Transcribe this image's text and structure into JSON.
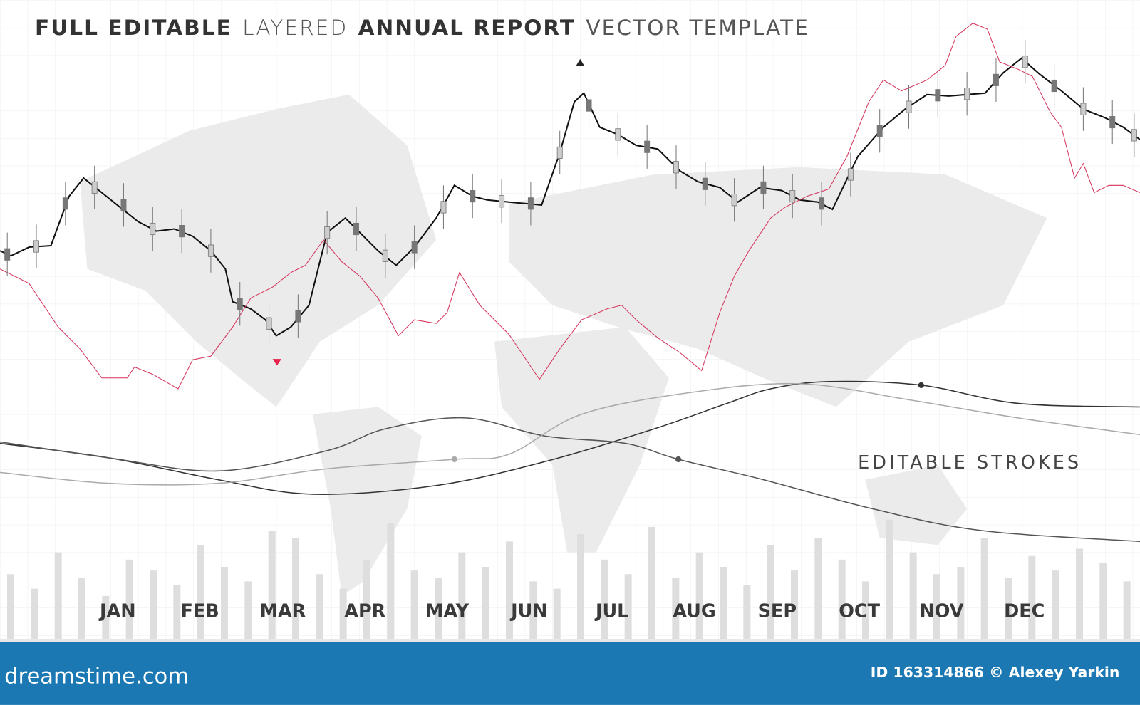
{
  "chart_data": [
    {
      "type": "candlestick",
      "title": [
        "FULL EDITABLE",
        "LAYERED",
        "ANNUAL REPORT",
        "VECTOR TEMPLATE"
      ],
      "annotations": [
        "EDITABLE STROKES"
      ],
      "xlim": [
        0,
        1568
      ],
      "ylim": [
        0,
        880
      ],
      "xticks": [
        {
          "value": 162,
          "label": "JAN"
        },
        {
          "value": 275,
          "label": "FEB"
        },
        {
          "value": 389,
          "label": "MAR"
        },
        {
          "value": 502,
          "label": "APR"
        },
        {
          "value": 615,
          "label": "MAY"
        },
        {
          "value": 728,
          "label": "JUN"
        },
        {
          "value": 842,
          "label": "JUL"
        },
        {
          "value": 955,
          "label": "AUG"
        },
        {
          "value": 1069,
          "label": "SEP"
        },
        {
          "value": 1182,
          "label": "OCT"
        },
        {
          "value": 1295,
          "label": "NOV"
        },
        {
          "value": 1409,
          "label": "DEC"
        }
      ],
      "candles": {
        "color": "#777777",
        "x": [
          10,
          50,
          90,
          130,
          170,
          210,
          250,
          290,
          330,
          370,
          410,
          450,
          490,
          530,
          570,
          610,
          650,
          690,
          730,
          770,
          810,
          850,
          890,
          930,
          970,
          1010,
          1050,
          1090,
          1130,
          1170,
          1210,
          1250,
          1290,
          1330,
          1370,
          1410,
          1450,
          1490,
          1530,
          1560
        ],
        "open": [
          538,
          533,
          608,
          614,
          606,
          557,
          570,
          527,
          470,
          427,
          453,
          552,
          573,
          520,
          548,
          587,
          618,
          595,
          608,
          662,
          743,
          687,
          686,
          642,
          635,
          597,
          630,
          602,
          608,
          632,
          708,
          725,
          757,
          743,
          778,
          787,
          770,
          722,
          720,
          686
        ],
        "close": [
          522,
          549,
          592,
          630,
          590,
          573,
          554,
          543,
          454,
          443,
          437,
          568,
          557,
          536,
          532,
          603,
          602,
          611,
          592,
          678,
          727,
          703,
          670,
          658,
          619,
          613,
          614,
          618,
          592,
          648,
          692,
          741,
          741,
          759,
          762,
          803,
          754,
          738,
          704,
          702
        ],
        "high": [
          560,
          571,
          630,
          652,
          628,
          595,
          592,
          565,
          492,
          465,
          475,
          590,
          595,
          558,
          570,
          625,
          640,
          633,
          630,
          700,
          765,
          725,
          708,
          680,
          657,
          635,
          652,
          640,
          630,
          670,
          730,
          763,
          779,
          781,
          800,
          825,
          792,
          760,
          742,
          724
        ],
        "low": [
          500,
          511,
          570,
          592,
          568,
          535,
          532,
          505,
          432,
          405,
          415,
          530,
          535,
          498,
          510,
          565,
          580,
          573,
          570,
          640,
          705,
          665,
          648,
          620,
          597,
          575,
          592,
          580,
          570,
          610,
          670,
          703,
          719,
          721,
          740,
          765,
          732,
          700,
          682,
          664
        ]
      },
      "series": [
        {
          "color": "#111111",
          "width": 2,
          "smooth": false,
          "x": [
            0,
            15,
            40,
            70,
            95,
            115,
            140,
            165,
            190,
            215,
            240,
            265,
            290,
            310,
            320,
            345,
            365,
            380,
            400,
            425,
            450,
            475,
            495,
            520,
            545,
            570,
            600,
            625,
            650,
            670,
            700,
            745,
            770,
            790,
            803,
            825,
            850,
            875,
            905,
            935,
            960,
            990,
            1015,
            1045,
            1075,
            1100,
            1125,
            1145,
            1180,
            1215,
            1245,
            1275,
            1305,
            1355,
            1380,
            1405,
            1430,
            1460,
            1490,
            1520,
            1545,
            1568
          ],
          "values": [
            535,
            528,
            540,
            542,
            610,
            635,
            615,
            595,
            575,
            562,
            565,
            555,
            535,
            510,
            465,
            455,
            440,
            418,
            430,
            460,
            560,
            580,
            560,
            535,
            515,
            540,
            580,
            625,
            610,
            605,
            602,
            598,
            670,
            740,
            752,
            705,
            695,
            680,
            675,
            645,
            630,
            622,
            602,
            622,
            618,
            605,
            602,
            592,
            665,
            705,
            730,
            750,
            748,
            752,
            780,
            800,
            778,
            755,
            730,
            718,
            705,
            688
          ]
        },
        {
          "color": "#d6325a",
          "width": 1,
          "smooth": false,
          "x": [
            0,
            40,
            80,
            110,
            140,
            175,
            185,
            210,
            245,
            265,
            290,
            320,
            345,
            375,
            400,
            420,
            445,
            470,
            495,
            520,
            548,
            570,
            600,
            615,
            632,
            660,
            700,
            742,
            770,
            800,
            835,
            855,
            875,
            905,
            935,
            965,
            990,
            1010,
            1030,
            1060,
            1080,
            1110,
            1140,
            1165,
            1195,
            1215,
            1240,
            1275,
            1300,
            1315,
            1338,
            1358,
            1375,
            1400,
            1420,
            1445,
            1460,
            1478,
            1490,
            1505,
            1525,
            1545,
            1568
          ],
          "values": [
            510,
            490,
            430,
            400,
            360,
            360,
            375,
            365,
            345,
            385,
            390,
            430,
            470,
            485,
            505,
            515,
            550,
            520,
            500,
            470,
            418,
            440,
            435,
            450,
            505,
            460,
            420,
            358,
            400,
            440,
            455,
            460,
            440,
            415,
            395,
            370,
            450,
            500,
            535,
            580,
            595,
            610,
            620,
            665,
            740,
            770,
            755,
            770,
            790,
            830,
            848,
            840,
            795,
            785,
            775,
            725,
            705,
            635,
            655,
            615,
            625,
            625,
            615
          ]
        },
        {
          "color": "#333333",
          "width": 1.5,
          "smooth": true,
          "marker": 10,
          "x": [
            0,
            150,
            300,
            430,
            600,
            750,
            900,
            1000,
            1060,
            1140,
            1267,
            1400,
            1568
          ],
          "values": [
            270,
            250,
            220,
            200,
            212,
            245,
            290,
            325,
            345,
            355,
            350,
            325,
            320
          ]
        },
        {
          "color": "#555555",
          "width": 1.5,
          "smooth": true,
          "marker": 8,
          "x": [
            0,
            150,
            300,
            450,
            530,
            640,
            750,
            860,
            933,
            1050,
            1200,
            1350,
            1568
          ],
          "values": [
            272,
            250,
            232,
            260,
            290,
            305,
            280,
            270,
            248,
            220,
            180,
            150,
            135
          ]
        },
        {
          "color": "#aaaaaa",
          "width": 1.5,
          "smooth": true,
          "marker": 4,
          "x": [
            0,
            150,
            300,
            450,
            625,
            700,
            800,
            950,
            1100,
            1250,
            1400,
            1568
          ],
          "values": [
            230,
            215,
            215,
            235,
            248,
            255,
            310,
            340,
            352,
            330,
            305,
            282
          ]
        }
      ]
    },
    {
      "type": "bar",
      "color": "#dedede",
      "ylim": [
        0,
        880
      ],
      "categories": [
        null,
        null,
        null,
        null,
        null,
        null,
        null,
        null,
        null,
        null,
        null,
        null,
        null,
        null,
        null,
        null,
        null,
        null,
        null,
        null,
        null,
        null,
        null,
        null,
        null,
        null,
        null,
        null,
        null,
        null,
        null,
        null,
        null,
        null,
        null,
        null,
        null,
        null,
        null,
        null,
        null,
        null,
        null,
        null,
        null,
        null,
        null,
        null
      ],
      "values": [
        90,
        70,
        120,
        85,
        60,
        110,
        95,
        75,
        130,
        100,
        80,
        150,
        140,
        90,
        70,
        110,
        160,
        95,
        85,
        120,
        100,
        135,
        80,
        70,
        145,
        110,
        90,
        155,
        85,
        120,
        100,
        75,
        130,
        95,
        140,
        110,
        80,
        165,
        120,
        90,
        100,
        140,
        85,
        115,
        95,
        125,
        105,
        80
      ]
    }
  ],
  "footer": {
    "site": "dreamstime.com",
    "credit": "ID 163314866 © Alexey Yarkin"
  }
}
